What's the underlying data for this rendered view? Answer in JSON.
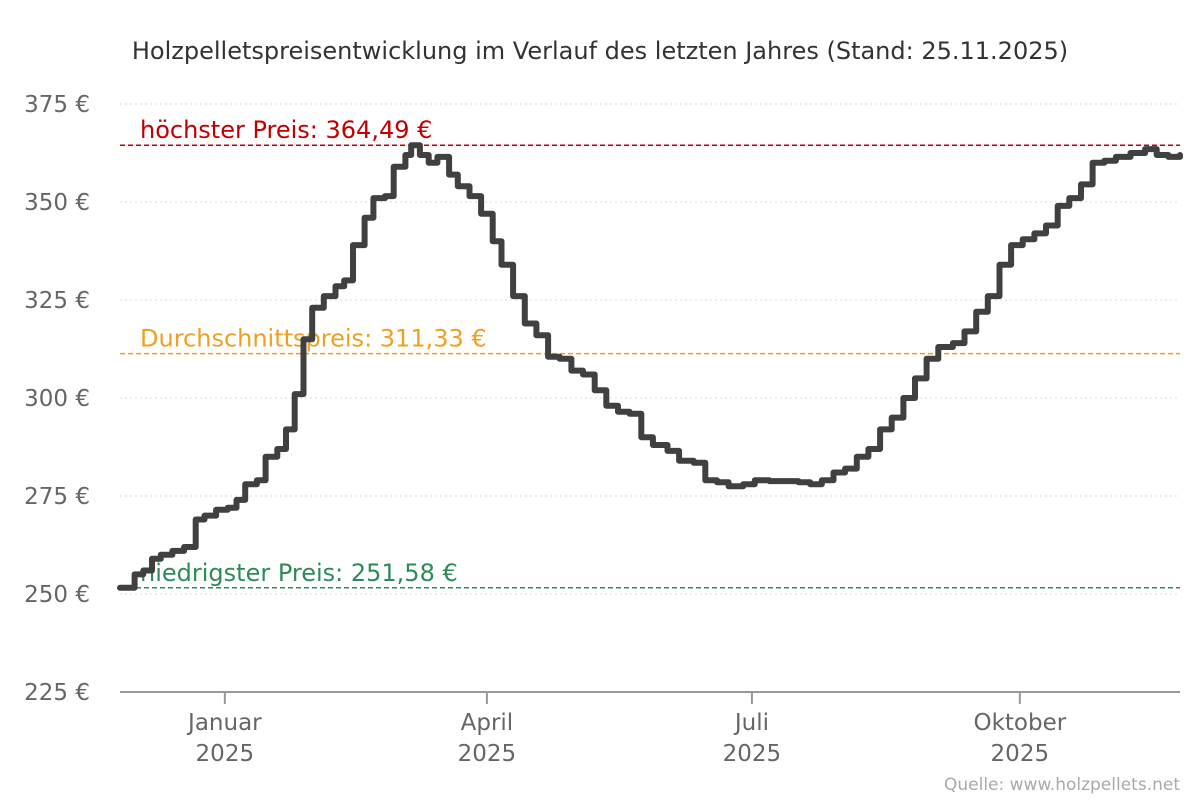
{
  "chart_data": {
    "type": "line",
    "title": "Holzpelletspreisentwicklung im Verlauf des letzten Jahres (Stand: 25.11.2025)",
    "ylim": [
      225,
      375
    ],
    "y_ticks": [
      225,
      250,
      275,
      300,
      325,
      350,
      375
    ],
    "y_tick_labels": [
      "225 €",
      "250 €",
      "275 €",
      "300 €",
      "325 €",
      "350 €",
      "375 €"
    ],
    "x_range": [
      "2024-11-26",
      "2025-11-25"
    ],
    "x_ticks": [
      {
        "date": "2025-01-01",
        "line1": "Januar",
        "line2": "2025"
      },
      {
        "date": "2025-04-01",
        "line1": "April",
        "line2": "2025"
      },
      {
        "date": "2025-07-01",
        "line1": "Juli",
        "line2": "2025"
      },
      {
        "date": "2025-10-01",
        "line1": "Oktober",
        "line2": "2025"
      }
    ],
    "grid": true,
    "series": [
      {
        "color": "#404040",
        "points": [
          [
            "2024-11-26",
            251.6
          ],
          [
            "2024-11-29",
            251.6
          ],
          [
            "2024-12-01",
            255
          ],
          [
            "2024-12-04",
            256
          ],
          [
            "2024-12-07",
            259
          ],
          [
            "2024-12-10",
            260
          ],
          [
            "2024-12-14",
            261
          ],
          [
            "2024-12-18",
            262
          ],
          [
            "2024-12-22",
            269
          ],
          [
            "2024-12-25",
            270
          ],
          [
            "2024-12-29",
            271.5
          ],
          [
            "2025-01-02",
            272
          ],
          [
            "2025-01-05",
            274
          ],
          [
            "2025-01-08",
            278
          ],
          [
            "2025-01-12",
            279
          ],
          [
            "2025-01-15",
            285
          ],
          [
            "2025-01-19",
            287
          ],
          [
            "2025-01-22",
            292
          ],
          [
            "2025-01-25",
            301
          ],
          [
            "2025-01-28",
            315
          ],
          [
            "2025-01-31",
            323
          ],
          [
            "2025-02-04",
            326
          ],
          [
            "2025-02-08",
            328.5
          ],
          [
            "2025-02-11",
            330
          ],
          [
            "2025-02-14",
            339
          ],
          [
            "2025-02-18",
            346
          ],
          [
            "2025-02-21",
            351
          ],
          [
            "2025-02-25",
            351.5
          ],
          [
            "2025-02-28",
            359
          ],
          [
            "2025-03-04",
            362
          ],
          [
            "2025-03-06",
            364.5
          ],
          [
            "2025-03-09",
            362
          ],
          [
            "2025-03-12",
            360
          ],
          [
            "2025-03-15",
            361.5
          ],
          [
            "2025-03-19",
            357
          ],
          [
            "2025-03-22",
            354
          ],
          [
            "2025-03-26",
            351.5
          ],
          [
            "2025-03-30",
            347
          ],
          [
            "2025-04-03",
            340
          ],
          [
            "2025-04-06",
            334
          ],
          [
            "2025-04-10",
            326
          ],
          [
            "2025-04-14",
            319
          ],
          [
            "2025-04-18",
            316
          ],
          [
            "2025-04-22",
            310.5
          ],
          [
            "2025-04-26",
            310
          ],
          [
            "2025-04-30",
            307
          ],
          [
            "2025-05-04",
            306
          ],
          [
            "2025-05-08",
            302
          ],
          [
            "2025-05-12",
            298
          ],
          [
            "2025-05-16",
            296.5
          ],
          [
            "2025-05-20",
            296
          ],
          [
            "2025-05-24",
            290
          ],
          [
            "2025-05-28",
            288
          ],
          [
            "2025-06-02",
            286.5
          ],
          [
            "2025-06-06",
            284
          ],
          [
            "2025-06-11",
            283.5
          ],
          [
            "2025-06-15",
            279
          ],
          [
            "2025-06-19",
            278.5
          ],
          [
            "2025-06-23",
            277.5
          ],
          [
            "2025-06-28",
            278
          ],
          [
            "2025-07-02",
            279
          ],
          [
            "2025-07-07",
            278.8
          ],
          [
            "2025-07-12",
            278.8
          ],
          [
            "2025-07-17",
            278.5
          ],
          [
            "2025-07-21",
            278
          ],
          [
            "2025-07-25",
            279
          ],
          [
            "2025-07-29",
            281
          ],
          [
            "2025-08-02",
            282
          ],
          [
            "2025-08-06",
            285
          ],
          [
            "2025-08-10",
            287
          ],
          [
            "2025-08-14",
            292
          ],
          [
            "2025-08-18",
            295
          ],
          [
            "2025-08-22",
            300
          ],
          [
            "2025-08-26",
            305
          ],
          [
            "2025-08-30",
            310
          ],
          [
            "2025-09-03",
            313
          ],
          [
            "2025-09-08",
            314
          ],
          [
            "2025-09-12",
            317
          ],
          [
            "2025-09-16",
            322
          ],
          [
            "2025-09-20",
            326
          ],
          [
            "2025-09-24",
            334
          ],
          [
            "2025-09-28",
            339
          ],
          [
            "2025-10-02",
            340.5
          ],
          [
            "2025-10-06",
            342
          ],
          [
            "2025-10-10",
            344
          ],
          [
            "2025-10-14",
            349
          ],
          [
            "2025-10-18",
            351
          ],
          [
            "2025-10-22",
            354.5
          ],
          [
            "2025-10-26",
            360
          ],
          [
            "2025-10-30",
            360.5
          ],
          [
            "2025-11-03",
            361.5
          ],
          [
            "2025-11-08",
            362.5
          ],
          [
            "2025-11-13",
            363.5
          ],
          [
            "2025-11-17",
            362
          ],
          [
            "2025-11-21",
            361.5
          ],
          [
            "2025-11-25",
            362
          ]
        ]
      }
    ],
    "reference_lines": [
      {
        "value": 364.49,
        "label": "höchster Preis: 364,49 €",
        "color": "#c00000"
      },
      {
        "value": 311.33,
        "label": "Durchschnittspreis: 311,33 €",
        "color": "#f0a020"
      },
      {
        "value": 251.58,
        "label": "niedrigster Preis: 251,58 €",
        "color": "#2e8b57"
      }
    ],
    "source": "Quelle: www.holzpellets.net"
  }
}
